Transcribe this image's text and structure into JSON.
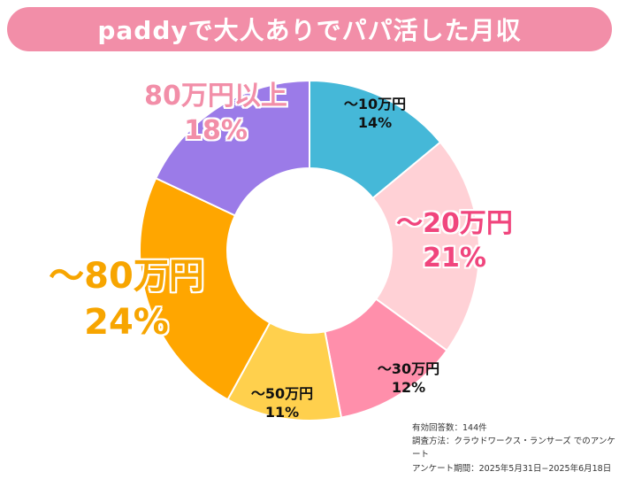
{
  "title": "paddyで大人ありでパパ活した月収",
  "colors": {
    "title_bar": "#f28ea8",
    "accent_pink": "#f0457d",
    "accent_orange": "#f7a500",
    "accent_salmon": "#f28ea8"
  },
  "chart_data": {
    "type": "donut",
    "slices": [
      {
        "label": "〜10万円",
        "value": 14,
        "pct_label": "14%",
        "color": "#45b8d8"
      },
      {
        "label": "〜20万円",
        "value": 21,
        "pct_label": "21%",
        "color": "#ffd1d6"
      },
      {
        "label": "〜30万円",
        "value": 12,
        "pct_label": "12%",
        "color": "#ff8fab"
      },
      {
        "label": "〜50万円",
        "value": 11,
        "pct_label": "11%",
        "color": "#ffd04d"
      },
      {
        "label": "〜80万円",
        "value": 24,
        "pct_label": "24%",
        "color": "#ffa600"
      },
      {
        "label": "80万円以上",
        "value": 18,
        "pct_label": "18%",
        "color": "#9b7be8"
      }
    ]
  },
  "footnotes": [
    "有効回答数：144件",
    "調査方法：クラウドワークス・ランサーズ でのアンケート",
    "アンケート期間：2025年5月31日−2025年6月18日"
  ]
}
